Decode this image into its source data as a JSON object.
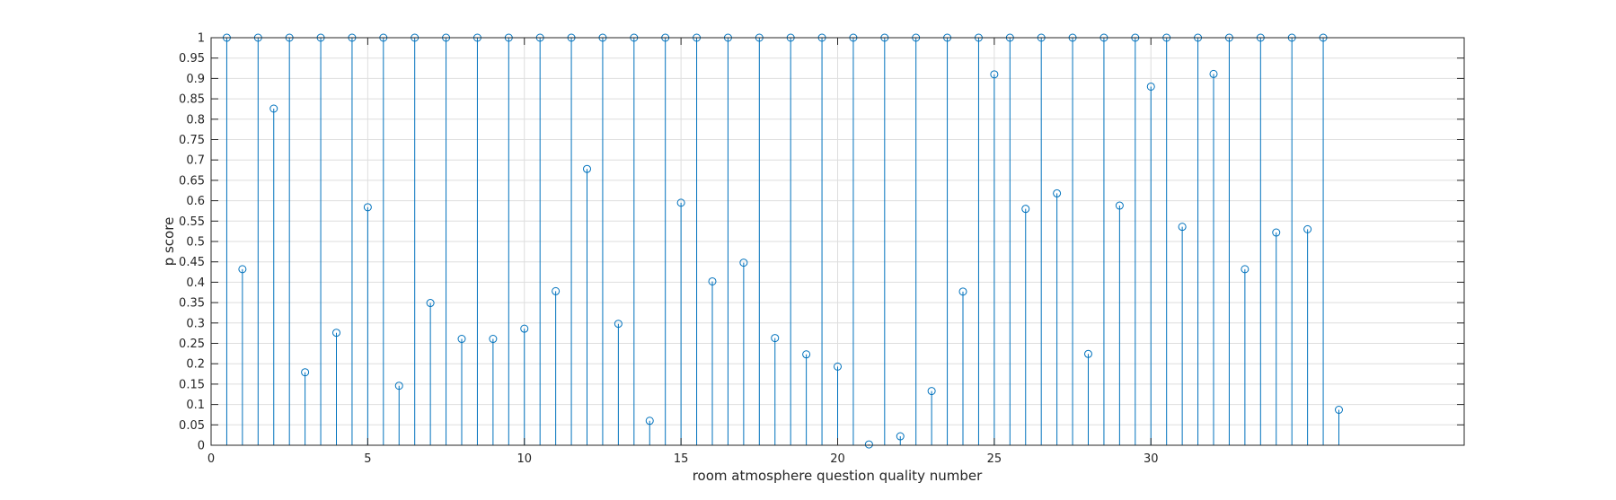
{
  "chart_data": {
    "type": "stem",
    "title": "",
    "xlabel": "room atmosphere question quality number",
    "ylabel": "p score",
    "xlim": [
      0,
      40
    ],
    "ylim": [
      0,
      1
    ],
    "xticks": [
      0,
      5,
      10,
      15,
      20,
      25,
      30
    ],
    "yticks": [
      0,
      0.05,
      0.1,
      0.15,
      0.2,
      0.25,
      0.3,
      0.35,
      0.4,
      0.45,
      0.5,
      0.55,
      0.6,
      0.65,
      0.7,
      0.75,
      0.8,
      0.85,
      0.9,
      0.95,
      1
    ],
    "grid": true,
    "line_color": "#0072BD",
    "series": [
      {
        "name": "",
        "x": [
          0.5,
          1,
          1.5,
          2,
          2.5,
          3,
          3.5,
          4,
          4.5,
          5,
          5.5,
          6,
          6.5,
          7,
          7.5,
          8,
          8.5,
          9,
          9.5,
          10,
          10.5,
          11,
          11.5,
          12,
          12.5,
          13,
          13.5,
          14,
          14.5,
          15,
          15.5,
          16,
          16.5,
          17,
          17.5,
          18,
          18.5,
          19,
          19.5,
          20,
          20.5,
          21,
          21.5,
          22,
          22.5,
          23,
          23.5,
          24,
          24.5,
          25,
          25.5,
          26,
          26.5,
          27,
          27.5,
          28,
          28.5,
          29,
          29.5,
          30,
          30.5,
          31,
          31.5,
          32,
          32.5,
          33,
          33.5,
          34,
          34.5,
          35,
          35.5,
          36
        ],
        "y": [
          1,
          0.432,
          1,
          0.826,
          1,
          0.179,
          1,
          0.276,
          1,
          0.584,
          1,
          0.146,
          1,
          0.349,
          1,
          0.261,
          1,
          0.261,
          1,
          0.286,
          1,
          0.378,
          1,
          0.678,
          1,
          0.298,
          1,
          0.06,
          1,
          0.595,
          1,
          0.402,
          1,
          0.448,
          1,
          0.263,
          1,
          0.223,
          1,
          0.193,
          1,
          0.002,
          1,
          0.022,
          1,
          0.133,
          1,
          0.377,
          1,
          0.91,
          1,
          0.58,
          1,
          0.618,
          1,
          0.224,
          1,
          0.588,
          1,
          0.88,
          1,
          0.536,
          1,
          0.911,
          1,
          0.432,
          1,
          0.522,
          1,
          0.53,
          1,
          0.087
        ]
      }
    ]
  }
}
